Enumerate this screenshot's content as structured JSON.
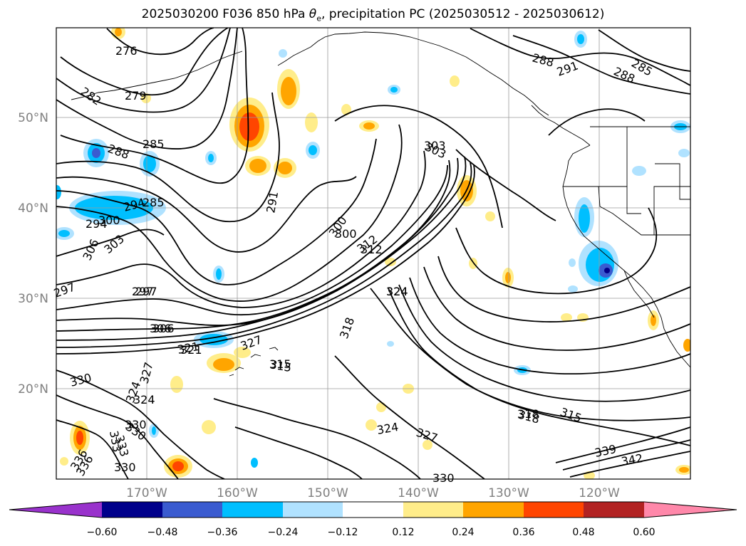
{
  "title": {
    "prefix": "2025030200 F036 850 hPa ",
    "theta": "θ",
    "sub": "e",
    "suffix": ", precipitation PC (2025030512 - 2025030612)"
  },
  "map": {
    "lat_labels": [
      "50°N",
      "40°N",
      "30°N",
      "20°N"
    ],
    "lon_labels": [
      "170°W",
      "160°W",
      "150°W",
      "140°W",
      "130°W",
      "120°W"
    ],
    "contour_labels": [
      "276",
      "279",
      "282",
      "285",
      "288",
      "291",
      "294",
      "297",
      "300",
      "303",
      "306",
      "312",
      "315",
      "318",
      "321",
      "324",
      "327",
      "330",
      "333",
      "336",
      "339",
      "342",
      "288",
      "291",
      "285",
      "288",
      "285",
      "294",
      "300",
      "303",
      "306",
      "297",
      "297",
      "306",
      "321",
      "324",
      "327",
      "330",
      "315",
      "318",
      "324",
      "327",
      "318",
      "315",
      "330",
      "330",
      "333",
      "336",
      "330",
      "324",
      "303",
      "300",
      "312",
      "324"
    ]
  },
  "colorbar": {
    "colors": [
      "#9932cc",
      "#00008b",
      "#3a5bd0",
      "#00bfff",
      "#b0e2ff",
      "#ffffff",
      "#ffed8a",
      "#ffa500",
      "#ff4500",
      "#b22222",
      "#ff88aa"
    ],
    "tick_labels": [
      "−0.60",
      "−0.48",
      "−0.36",
      "−0.24",
      "−0.12",
      "0.12",
      "0.24",
      "0.36",
      "0.48",
      "0.60"
    ]
  }
}
